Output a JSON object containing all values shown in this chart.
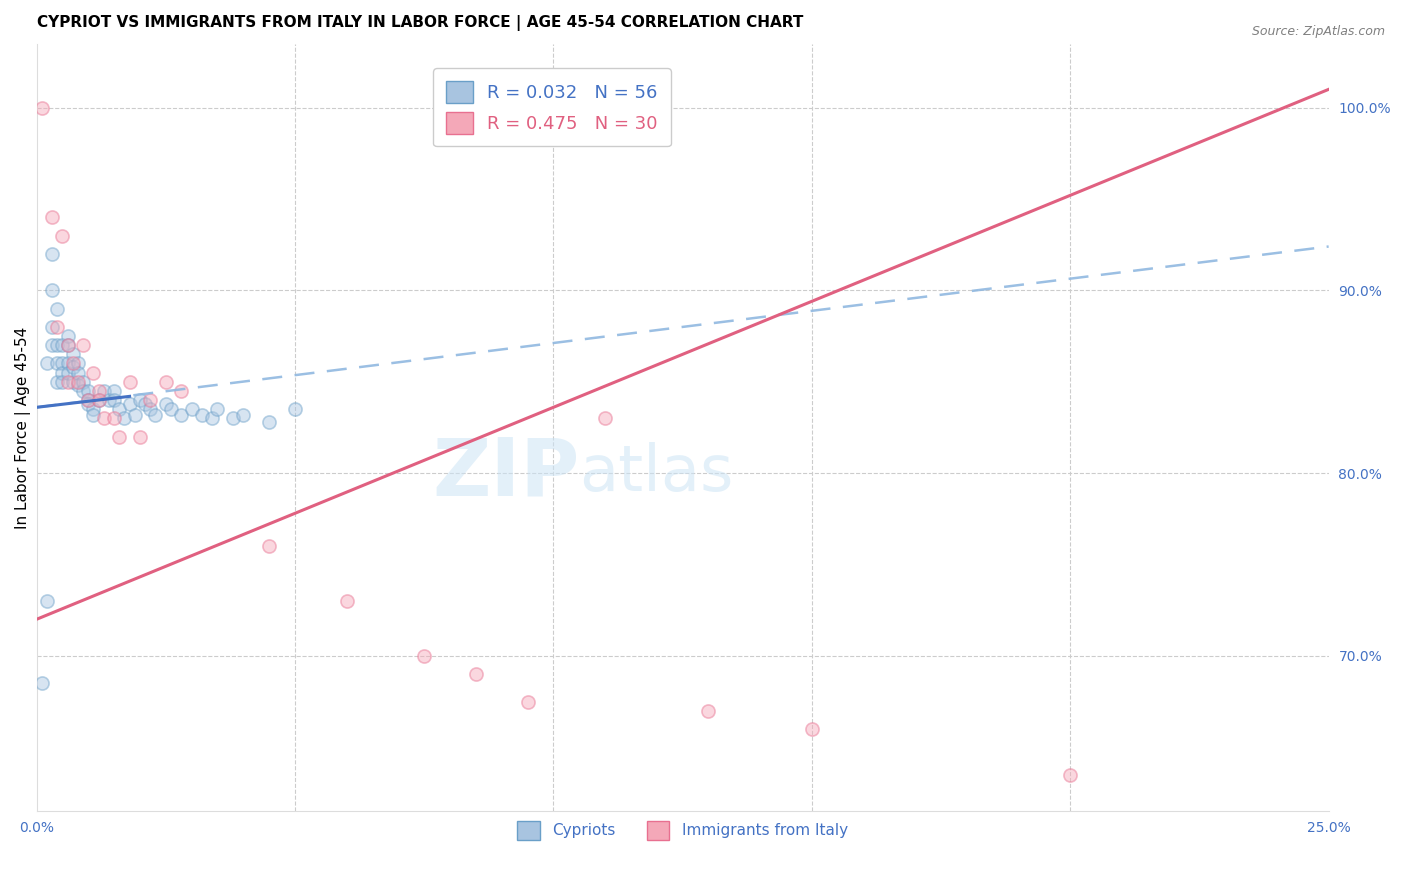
{
  "title": "CYPRIOT VS IMMIGRANTS FROM ITALY IN LABOR FORCE | AGE 45-54 CORRELATION CHART",
  "source": "Source: ZipAtlas.com",
  "ylabel": "In Labor Force | Age 45-54",
  "xlim": [
    0.0,
    0.25
  ],
  "ylim": [
    0.615,
    1.035
  ],
  "xticks": [
    0.0,
    0.05,
    0.1,
    0.15,
    0.2,
    0.25
  ],
  "xticklabels": [
    "0.0%",
    "",
    "",
    "",
    "",
    "25.0%"
  ],
  "yticks_right": [
    0.7,
    0.8,
    0.9,
    1.0
  ],
  "ytick_right_labels": [
    "70.0%",
    "80.0%",
    "90.0%",
    "100.0%"
  ],
  "cypriot_x": [
    0.001,
    0.002,
    0.002,
    0.003,
    0.003,
    0.003,
    0.003,
    0.004,
    0.004,
    0.004,
    0.004,
    0.005,
    0.005,
    0.005,
    0.005,
    0.006,
    0.006,
    0.006,
    0.006,
    0.007,
    0.007,
    0.007,
    0.008,
    0.008,
    0.008,
    0.009,
    0.009,
    0.01,
    0.01,
    0.01,
    0.011,
    0.011,
    0.012,
    0.013,
    0.014,
    0.015,
    0.015,
    0.016,
    0.017,
    0.018,
    0.019,
    0.02,
    0.021,
    0.022,
    0.023,
    0.025,
    0.026,
    0.028,
    0.03,
    0.032,
    0.034,
    0.035,
    0.038,
    0.04,
    0.045,
    0.05
  ],
  "cypriot_y": [
    0.685,
    0.86,
    0.73,
    0.92,
    0.9,
    0.88,
    0.87,
    0.89,
    0.87,
    0.86,
    0.85,
    0.87,
    0.86,
    0.855,
    0.85,
    0.875,
    0.87,
    0.86,
    0.855,
    0.865,
    0.858,
    0.85,
    0.86,
    0.855,
    0.848,
    0.85,
    0.845,
    0.845,
    0.84,
    0.838,
    0.835,
    0.832,
    0.84,
    0.845,
    0.84,
    0.845,
    0.84,
    0.835,
    0.83,
    0.838,
    0.832,
    0.84,
    0.838,
    0.835,
    0.832,
    0.838,
    0.835,
    0.832,
    0.835,
    0.832,
    0.83,
    0.835,
    0.83,
    0.832,
    0.828,
    0.835
  ],
  "italy_x": [
    0.001,
    0.003,
    0.004,
    0.005,
    0.006,
    0.006,
    0.007,
    0.008,
    0.009,
    0.01,
    0.011,
    0.012,
    0.012,
    0.013,
    0.015,
    0.016,
    0.018,
    0.02,
    0.022,
    0.025,
    0.028,
    0.045,
    0.06,
    0.075,
    0.085,
    0.095,
    0.11,
    0.13,
    0.15,
    0.2
  ],
  "italy_y": [
    1.0,
    0.94,
    0.88,
    0.93,
    0.85,
    0.87,
    0.86,
    0.85,
    0.87,
    0.84,
    0.855,
    0.845,
    0.84,
    0.83,
    0.83,
    0.82,
    0.85,
    0.82,
    0.84,
    0.85,
    0.845,
    0.76,
    0.73,
    0.7,
    0.69,
    0.675,
    0.83,
    0.67,
    0.66,
    0.635
  ],
  "cypriot_color": "#a8c4e0",
  "italy_color": "#f4a8b8",
  "cypriot_edge_color": "#6a9fc8",
  "italy_edge_color": "#e87090",
  "trend_cypriot_solid_color": "#4472c4",
  "trend_cypriot_dash_color": "#90b8e0",
  "trend_italy_color": "#e06080",
  "trend_cypriot_x0": 0.0,
  "trend_cypriot_y0": 0.836,
  "trend_cypriot_x1": 0.018,
  "trend_cypriot_y1": 0.842,
  "trend_cypriot_dash_x0": 0.0,
  "trend_cypriot_dash_y0": 0.836,
  "trend_cypriot_dash_x1": 0.25,
  "trend_cypriot_dash_y1": 0.924,
  "trend_italy_x0": 0.0,
  "trend_italy_y0": 0.72,
  "trend_italy_x1": 0.25,
  "trend_italy_y1": 1.01,
  "R_cypriot": 0.032,
  "N_cypriot": 56,
  "R_italy": 0.475,
  "N_italy": 30,
  "watermark_zip": "ZIP",
  "watermark_atlas": "atlas",
  "background_color": "#ffffff",
  "grid_color": "#cccccc",
  "right_axis_color": "#4472c4",
  "title_fontsize": 11,
  "label_fontsize": 11,
  "tick_fontsize": 10,
  "scatter_size": 90,
  "scatter_alpha": 0.45,
  "scatter_linewidth": 1.2
}
